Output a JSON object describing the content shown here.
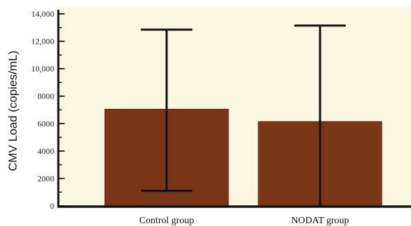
{
  "chart_data": {
    "type": "bar",
    "title": "",
    "xlabel": "",
    "ylabel": "CMV Load (copies/mL)",
    "categories": [
      "Control group",
      "NODAT group"
    ],
    "values": [
      7050,
      6150
    ],
    "error_bars": [
      {
        "low": 1100,
        "high": 12850
      },
      {
        "low": 0,
        "high": 13150
      }
    ],
    "ylim": [
      0,
      14000
    ],
    "y_ticks": [
      {
        "value": 0,
        "label": "0"
      },
      {
        "value": 2000,
        "label": "2000"
      },
      {
        "value": 4000,
        "label": "4000"
      },
      {
        "value": 6000,
        "label": "6000"
      },
      {
        "value": 8000,
        "label": "8000"
      },
      {
        "value": 10000,
        "label": "10,000"
      },
      {
        "value": 12000,
        "label": "12,000"
      },
      {
        "value": 14000,
        "label": "14,000"
      }
    ],
    "y_minor_tick_step": 1000,
    "grid": false,
    "legend": "none",
    "colors": {
      "plot_background": "#FBF6DF",
      "bar": "#7A3416",
      "bar_edge": "#6A2C12",
      "axis": "#111111",
      "error_bar": "#111111"
    }
  }
}
